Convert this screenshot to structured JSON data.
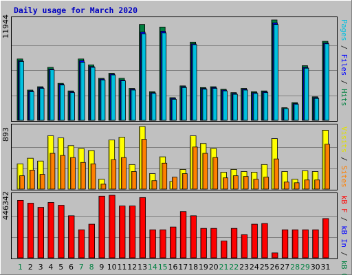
{
  "chart_data": [
    {
      "panel": "hits_files_pages",
      "type": "bar",
      "title": "Daily usage for March 2020",
      "categories": [
        "1",
        "2",
        "3",
        "4",
        "5",
        "6",
        "7",
        "8",
        "9",
        "10",
        "11",
        "12",
        "13",
        "14",
        "15",
        "16",
        "17",
        "18",
        "19",
        "20",
        "21",
        "22",
        "23",
        "24",
        "25",
        "26",
        "27",
        "28",
        "29",
        "30",
        "31"
      ],
      "weekend_days": [
        "1",
        "7",
        "8",
        "14",
        "15",
        "21",
        "22",
        "28",
        "29"
      ],
      "ymax_label": "11944",
      "ylim": [
        0,
        11944
      ],
      "side_label_parts": [
        {
          "text": "Pages",
          "color": "#00c0e0"
        },
        {
          "text": " / ",
          "color": "#202020"
        },
        {
          "text": "Files",
          "color": "#0000ff"
        },
        {
          "text": " / ",
          "color": "#202020"
        },
        {
          "text": "Hits",
          "color": "#008040"
        }
      ],
      "series": [
        {
          "name": "Hits",
          "color": "#008040",
          "values": [
            7300,
            3600,
            4000,
            6300,
            4400,
            3500,
            7300,
            6600,
            5000,
            5600,
            5000,
            3800,
            11400,
            3400,
            11100,
            2700,
            4100,
            9300,
            3900,
            4000,
            3700,
            3300,
            3800,
            3400,
            3500,
            11944,
            1500,
            2100,
            6500,
            2800,
            9400
          ]
        },
        {
          "name": "Files",
          "color": "#0000ff",
          "values": [
            7100,
            3500,
            3900,
            6100,
            4300,
            3400,
            7100,
            6400,
            4900,
            5500,
            4800,
            3700,
            10500,
            3300,
            10600,
            2600,
            4000,
            9100,
            3800,
            3900,
            3600,
            3200,
            3700,
            3300,
            3400,
            11600,
            1400,
            2000,
            6300,
            2700,
            9200
          ]
        },
        {
          "name": "Pages",
          "color": "#00c0e0",
          "values": [
            7000,
            3400,
            3800,
            6000,
            4200,
            3300,
            6900,
            6300,
            4800,
            5400,
            4700,
            3600,
            10300,
            3200,
            10400,
            2500,
            3900,
            9000,
            3700,
            3800,
            3500,
            3100,
            3600,
            3200,
            3300,
            11400,
            1400,
            1900,
            6200,
            2600,
            9100
          ]
        }
      ]
    },
    {
      "panel": "visits_sites",
      "type": "bar",
      "ymax_label": "893",
      "ylim": [
        0,
        893
      ],
      "side_label_parts": [
        {
          "text": "Visits",
          "color": "#e0e000"
        },
        {
          "text": " / ",
          "color": "#202020"
        },
        {
          "text": "Sites",
          "color": "#ff8000"
        }
      ],
      "series": [
        {
          "name": "Visits",
          "color": "#ffff00",
          "values": [
            360,
            440,
            400,
            760,
            730,
            620,
            580,
            550,
            140,
            700,
            740,
            350,
            893,
            220,
            460,
            110,
            280,
            760,
            650,
            580,
            240,
            280,
            250,
            240,
            350,
            720,
            250,
            140,
            260,
            250,
            840
          ]
        },
        {
          "name": "Sites",
          "color": "#ff8000",
          "values": [
            190,
            270,
            210,
            510,
            480,
            450,
            380,
            360,
            70,
            420,
            450,
            250,
            710,
            120,
            370,
            170,
            220,
            600,
            510,
            450,
            160,
            190,
            180,
            140,
            170,
            430,
            100,
            90,
            130,
            130,
            640
          ]
        }
      ]
    },
    {
      "panel": "kbytes",
      "type": "bar",
      "ymax_label": "446342",
      "ylim": [
        0,
        446342
      ],
      "side_label_parts": [
        {
          "text": "kB F",
          "color": "#ff0000"
        },
        {
          "text": " / ",
          "color": "#202020"
        },
        {
          "text": "kB In",
          "color": "#0000ff"
        },
        {
          "text": " / ",
          "color": "#202020"
        },
        {
          "text": "kB Out",
          "color": "#008040"
        }
      ],
      "series": [
        {
          "name": "kB F",
          "color": "#ff0000",
          "values": [
            410000,
            390000,
            360000,
            395000,
            375000,
            300000,
            200000,
            240000,
            440000,
            446342,
            370000,
            370000,
            430000,
            200000,
            200000,
            220000,
            330000,
            300000,
            210000,
            210000,
            120000,
            210000,
            165000,
            240000,
            245000,
            35000,
            200000,
            200000,
            200000,
            200000,
            280000
          ]
        }
      ]
    }
  ]
}
